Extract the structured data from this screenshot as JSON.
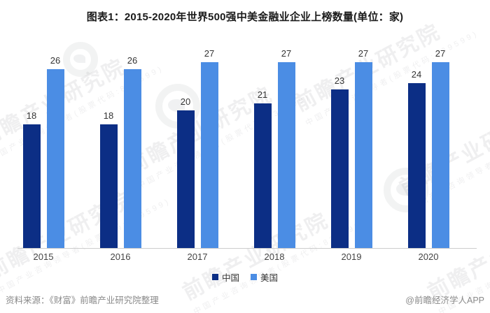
{
  "title": "图表1：2015-2020年世界500强中美金融业企业上榜数量(单位：家)",
  "chart_data": {
    "type": "bar",
    "title": "图表1：2015-2020年世界500强中美金融业企业上榜数量(单位：家)",
    "categories": [
      "2015",
      "2016",
      "2017",
      "2018",
      "2019",
      "2020"
    ],
    "series": [
      {
        "name": "中国",
        "color": "#0C2E85",
        "values": [
          18,
          18,
          20,
          21,
          23,
          24
        ]
      },
      {
        "name": "美国",
        "color": "#4B8DE4",
        "values": [
          26,
          26,
          27,
          27,
          27,
          27
        ]
      }
    ],
    "xlabel": "",
    "ylabel": "",
    "unit": "家",
    "ylim": [
      0,
      28
    ],
    "grid": false,
    "value_labels": true,
    "legend_position": "bottom"
  },
  "legend": {
    "items": [
      {
        "label": "中国",
        "color": "#0C2E85"
      },
      {
        "label": "美国",
        "color": "#4B8DE4"
      }
    ]
  },
  "footer": {
    "source": "资料来源：《财富》前瞻产业研究院整理",
    "credit": "@前瞻经济学人APP"
  },
  "watermark": {
    "text": "前瞻产业研究院",
    "subtext": "中国产业咨询领导者(股票代码:839599)"
  },
  "colors": {
    "axis_line": "#cccccc",
    "title_text": "#1a1a1a",
    "value_label": "#333333",
    "footer_text": "#8a8a8a"
  }
}
